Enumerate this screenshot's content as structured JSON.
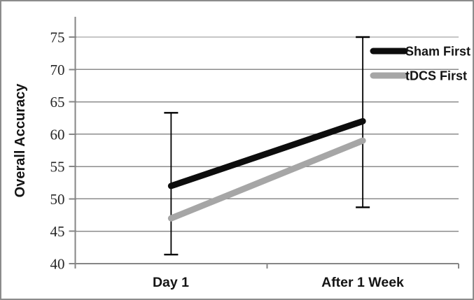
{
  "chart_data": {
    "type": "line",
    "title": "",
    "xlabel": "",
    "ylabel": "Overall Accuracy",
    "categories": [
      "Day 1",
      "After 1 Week"
    ],
    "series": [
      {
        "name": "Sham First",
        "values": [
          52,
          62
        ],
        "color": "#0d0d0d"
      },
      {
        "name": "tDCS First",
        "values": [
          47,
          59
        ],
        "color": "#a6a6a6"
      }
    ],
    "error_bars": {
      "attached_to": "Sham First",
      "color": "#000000",
      "points": [
        {
          "category": "Day 1",
          "low": 41.4,
          "high": 63.3
        },
        {
          "category": "After 1 Week",
          "low": 48.7,
          "high": 75.0
        }
      ]
    },
    "yticks": [
      40,
      45,
      50,
      55,
      60,
      65,
      70,
      75
    ],
    "ylim": [
      40,
      75
    ],
    "grid": true,
    "legend_position": "inside-top-right",
    "colors": {
      "axis": "#868686",
      "gridline": "#8c8c8c",
      "frame_border": "#8c8c8c",
      "background": "#ffffff",
      "tick_label": "#262626"
    }
  }
}
